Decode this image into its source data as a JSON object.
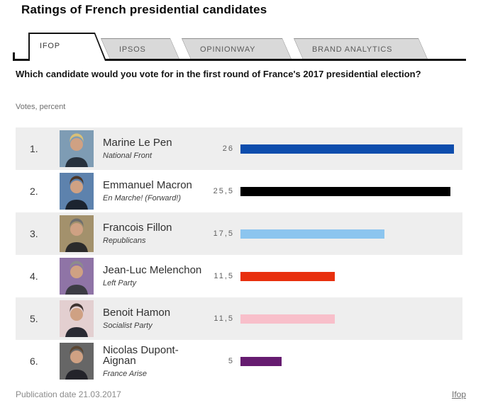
{
  "title": "Ratings of French presidential candidates",
  "tabs": [
    {
      "label": "IFOP",
      "active": true
    },
    {
      "label": "IPSOS",
      "active": false
    },
    {
      "label": "OPINIONWAY",
      "active": false
    },
    {
      "label": "BRAND ANALYTICS",
      "active": false
    }
  ],
  "question": "Which candidate would you vote for in the first round of France's 2017 presidential election?",
  "units_label": "Votes, percent",
  "candidates": [
    {
      "rank": "1.",
      "name": "Marine Le Pen",
      "party": "National Front",
      "value": 26,
      "value_label": "26",
      "bar_color": "#0d4dad",
      "photo": {
        "bg": "#7e9cb4",
        "hair": "#d9c077",
        "suit": "#27313d"
      }
    },
    {
      "rank": "2.",
      "name": "Emmanuel Macron",
      "party": "En Marche! (Forward!)",
      "value": 25.5,
      "value_label": "25,5",
      "bar_color": "#000000",
      "photo": {
        "bg": "#5d82ad",
        "hair": "#4a3628",
        "suit": "#1c2430"
      }
    },
    {
      "rank": "3.",
      "name": "Francois Fillon",
      "party": "Republicans",
      "value": 17.5,
      "value_label": "17,5",
      "bar_color": "#8cc5ef",
      "photo": {
        "bg": "#a3916c",
        "hair": "#6e6e6e",
        "suit": "#2b2b2b"
      }
    },
    {
      "rank": "4.",
      "name": "Jean-Luc Melenchon",
      "party": "Left Party",
      "value": 11.5,
      "value_label": "11,5",
      "bar_color": "#e8300e",
      "photo": {
        "bg": "#8f74a6",
        "hair": "#8c8c8c",
        "suit": "#3c3c44"
      }
    },
    {
      "rank": "5.",
      "name": "Benoit Hamon",
      "party": "Socialist Party",
      "value": 11.5,
      "value_label": "11,5",
      "bar_color": "#f8bfca",
      "photo": {
        "bg": "#e3cfd0",
        "hair": "#3e3330",
        "suit": "#2a2a33"
      }
    },
    {
      "rank": "6.",
      "name": "Nicolas Dupont-Aignan",
      "party": "France Arise",
      "value": 5,
      "value_label": "5",
      "bar_color": "#661c70",
      "photo": {
        "bg": "#666666",
        "hair": "#5a4632",
        "suit": "#23232a"
      }
    }
  ],
  "footer": {
    "publication": "Publication date 21.03.2017",
    "source": "Ifop"
  },
  "chart_data": {
    "type": "bar",
    "orientation": "horizontal",
    "title": "Ratings of French presidential candidates",
    "subtitle": "Which candidate would you vote for in the first round of France's 2017 presidential election?",
    "categories": [
      "Marine Le Pen",
      "Emmanuel Macron",
      "Francois Fillon",
      "Jean-Luc Melenchon",
      "Benoit Hamon",
      "Nicolas Dupont-Aignan"
    ],
    "category_sublabels": [
      "National Front",
      "En Marche! (Forward!)",
      "Republicans",
      "Left Party",
      "Socialist Party",
      "France Arise"
    ],
    "values": [
      26,
      25.5,
      17.5,
      11.5,
      11.5,
      5
    ],
    "value_labels": [
      "26",
      "25,5",
      "17,5",
      "11,5",
      "11,5",
      "5"
    ],
    "bar_colors": [
      "#0d4dad",
      "#000000",
      "#8cc5ef",
      "#e8300e",
      "#f8bfca",
      "#661c70"
    ],
    "xlabel": "Votes, percent",
    "xlim": [
      0,
      27
    ],
    "grid": false,
    "legend": false,
    "row_stripe_color": "#eeeeee"
  }
}
